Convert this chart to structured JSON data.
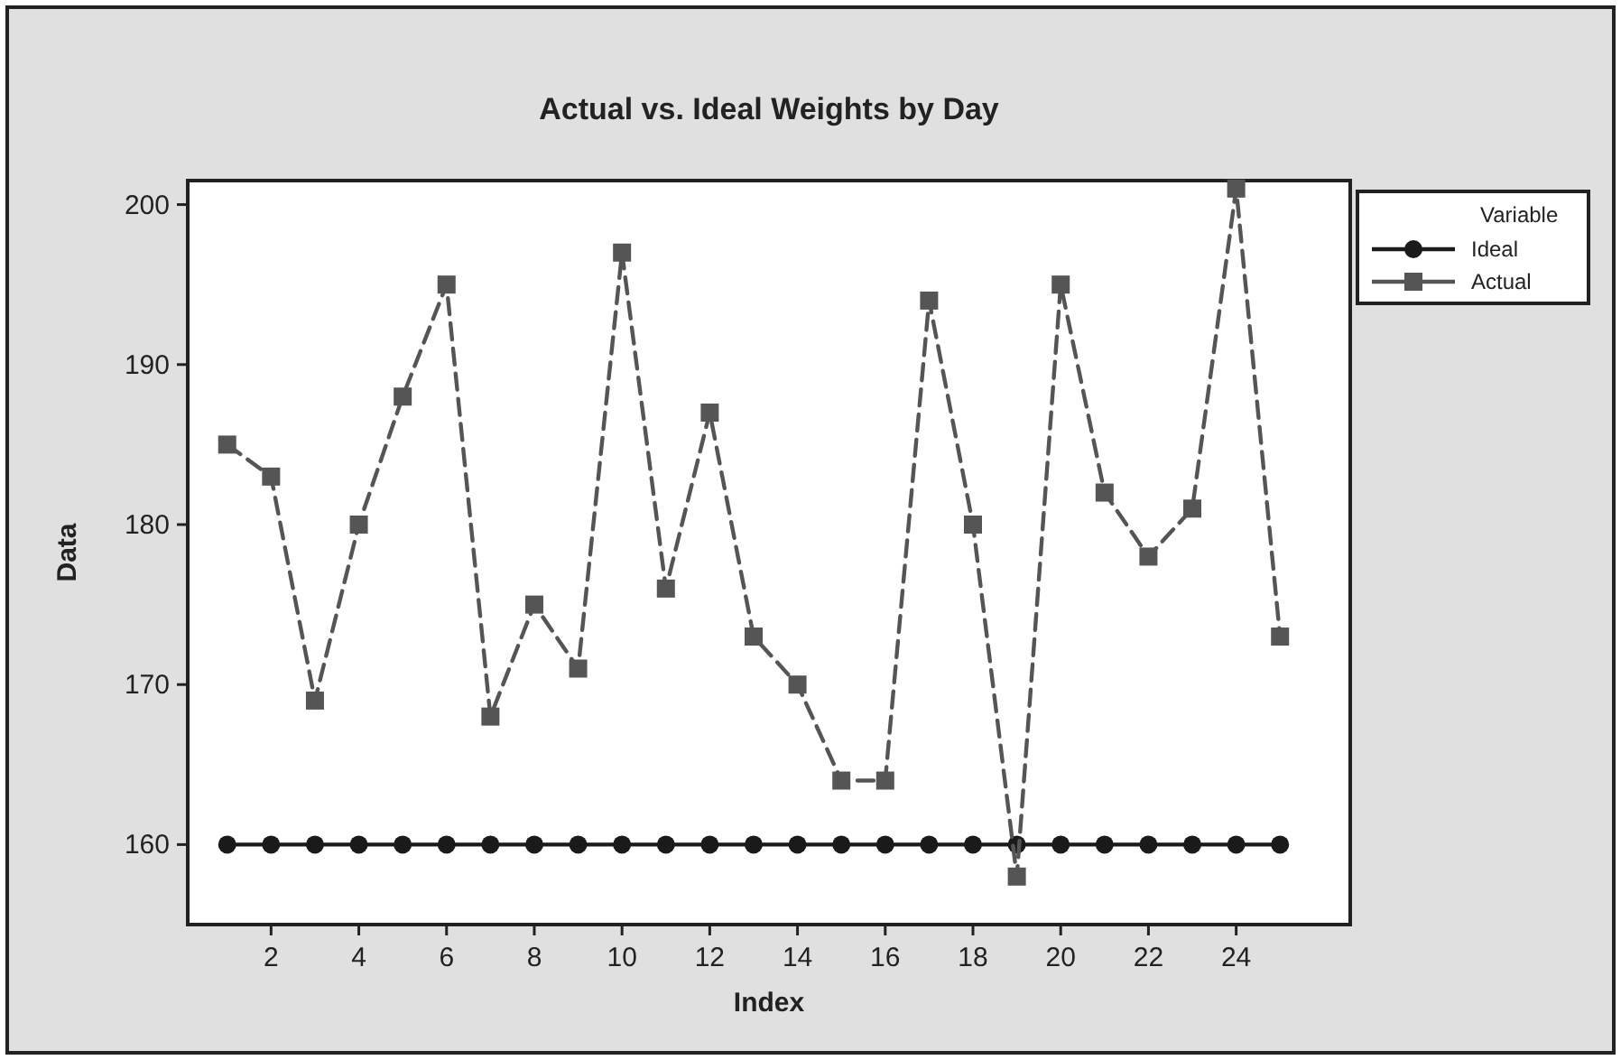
{
  "chart_data": {
    "type": "line",
    "title": "Actual vs. Ideal Weights by Day",
    "xlabel": "Index",
    "ylabel": "Data",
    "legend_title": "Variable",
    "legend": "top right",
    "x": [
      1,
      2,
      3,
      4,
      5,
      6,
      7,
      8,
      9,
      10,
      11,
      12,
      13,
      14,
      15,
      16,
      17,
      18,
      19,
      20,
      21,
      22,
      23,
      24,
      25
    ],
    "xlim": [
      0.1,
      26.6
    ],
    "xticks": [
      2,
      4,
      6,
      8,
      10,
      12,
      14,
      16,
      18,
      20,
      22,
      24
    ],
    "ylim": [
      155,
      201.5
    ],
    "yticks": [
      160,
      170,
      180,
      190,
      200
    ],
    "grid": false,
    "series": [
      {
        "name": "Ideal",
        "color": "#1a1a1a",
        "marker": "circle",
        "line_style": "solid",
        "values": [
          160,
          160,
          160,
          160,
          160,
          160,
          160,
          160,
          160,
          160,
          160,
          160,
          160,
          160,
          160,
          160,
          160,
          160,
          160,
          160,
          160,
          160,
          160,
          160,
          160
        ]
      },
      {
        "name": "Actual",
        "color": "#555555",
        "marker": "square",
        "line_style": "dashed",
        "values": [
          185,
          183,
          169,
          180,
          188,
          195,
          168,
          175,
          171,
          197,
          176,
          187,
          173,
          170,
          164,
          164,
          194,
          180,
          158,
          195,
          182,
          178,
          181,
          201,
          173
        ]
      }
    ]
  }
}
